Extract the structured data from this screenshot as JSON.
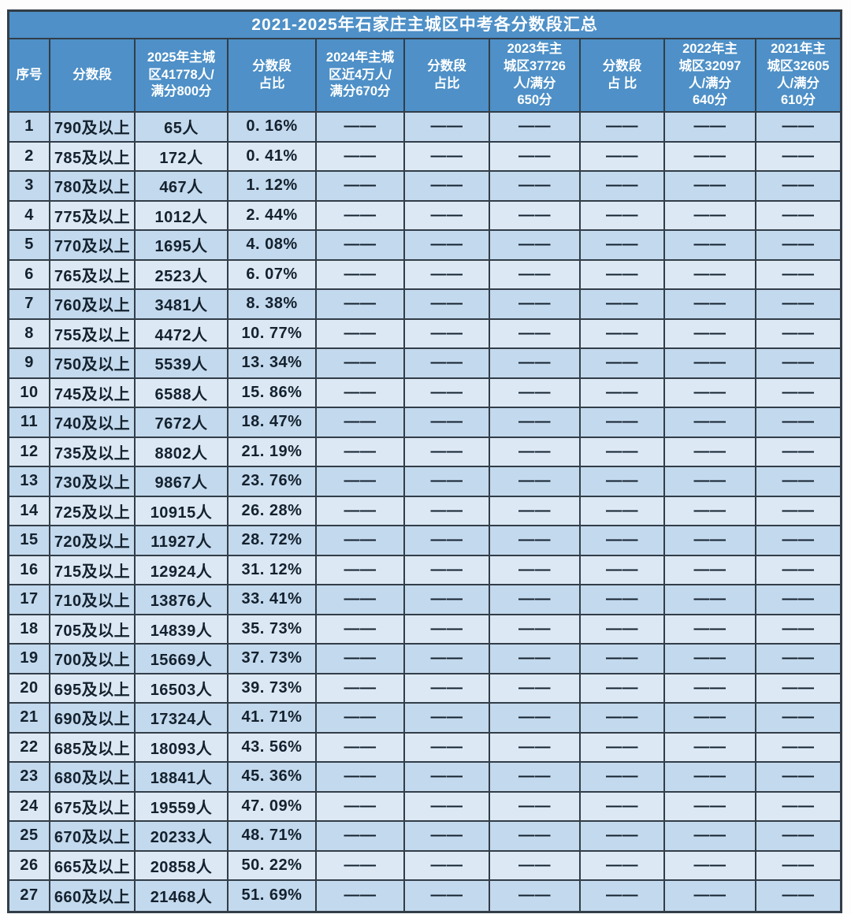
{
  "title": "2021-2025年石家庄主城区中考各分数段汇总",
  "colors": {
    "header_bg": "#4e90c7",
    "header_text": "#ffffff",
    "row_odd_bg": "#c3d9ed",
    "row_even_bg": "#dce9f5",
    "border": "#323d48",
    "cell_text": "#14212e",
    "page_bg": "#fdfdfd"
  },
  "placeholder_dash": "——",
  "chart_data": {
    "type": "table",
    "title": "2021-2025年石家庄主城区中考各分数段汇总",
    "columns": [
      "序号",
      "分数段",
      "2025年主城\n区41778人/\n满分800分",
      "分数段\n占比",
      "2024年主城\n区近4万人/\n满分670分",
      "分数段\n占比",
      "2023年主\n城区37726\n人/满分\n650分",
      "分数段\n占 比",
      "2022年主\n城区32097\n人/满分\n640分",
      "2021年主\n城区32605\n人/满分\n610分"
    ],
    "rows": [
      [
        "1",
        "790及以上",
        "65人",
        "0. 16%",
        "——",
        "——",
        "——",
        "——",
        "——",
        "——"
      ],
      [
        "2",
        "785及以上",
        "172人",
        "0. 41%",
        "——",
        "——",
        "——",
        "——",
        "——",
        "——"
      ],
      [
        "3",
        "780及以上",
        "467人",
        "1. 12%",
        "——",
        "——",
        "——",
        "——",
        "——",
        "——"
      ],
      [
        "4",
        "775及以上",
        "1012人",
        "2. 44%",
        "——",
        "——",
        "——",
        "——",
        "——",
        "——"
      ],
      [
        "5",
        "770及以上",
        "1695人",
        "4. 08%",
        "——",
        "——",
        "——",
        "——",
        "——",
        "——"
      ],
      [
        "6",
        "765及以上",
        "2523人",
        "6. 07%",
        "——",
        "——",
        "——",
        "——",
        "——",
        "——"
      ],
      [
        "7",
        "760及以上",
        "3481人",
        "8. 38%",
        "——",
        "——",
        "——",
        "——",
        "——",
        "——"
      ],
      [
        "8",
        "755及以上",
        "4472人",
        "10. 77%",
        "——",
        "——",
        "——",
        "——",
        "——",
        "——"
      ],
      [
        "9",
        "750及以上",
        "5539人",
        "13. 34%",
        "——",
        "——",
        "——",
        "——",
        "——",
        "——"
      ],
      [
        "10",
        "745及以上",
        "6588人",
        "15. 86%",
        "——",
        "——",
        "——",
        "——",
        "——",
        "——"
      ],
      [
        "11",
        "740及以上",
        "7672人",
        "18. 47%",
        "——",
        "——",
        "——",
        "——",
        "——",
        "——"
      ],
      [
        "12",
        "735及以上",
        "8802人",
        "21. 19%",
        "——",
        "——",
        "——",
        "——",
        "——",
        "——"
      ],
      [
        "13",
        "730及以上",
        "9867人",
        "23. 76%",
        "——",
        "——",
        "——",
        "——",
        "——",
        "——"
      ],
      [
        "14",
        "725及以上",
        "10915人",
        "26. 28%",
        "——",
        "——",
        "——",
        "——",
        "——",
        "——"
      ],
      [
        "15",
        "720及以上",
        "11927人",
        "28. 72%",
        "——",
        "——",
        "——",
        "——",
        "——",
        "——"
      ],
      [
        "16",
        "715及以上",
        "12924人",
        "31. 12%",
        "——",
        "——",
        "——",
        "——",
        "——",
        "——"
      ],
      [
        "17",
        "710及以上",
        "13876人",
        "33. 41%",
        "——",
        "——",
        "——",
        "——",
        "——",
        "——"
      ],
      [
        "18",
        "705及以上",
        "14839人",
        "35. 73%",
        "——",
        "——",
        "——",
        "——",
        "——",
        "——"
      ],
      [
        "19",
        "700及以上",
        "15669人",
        "37. 73%",
        "——",
        "——",
        "——",
        "——",
        "——",
        "——"
      ],
      [
        "20",
        "695及以上",
        "16503人",
        "39. 73%",
        "——",
        "——",
        "——",
        "——",
        "——",
        "——"
      ],
      [
        "21",
        "690及以上",
        "17324人",
        "41. 71%",
        "——",
        "——",
        "——",
        "——",
        "——",
        "——"
      ],
      [
        "22",
        "685及以上",
        "18093人",
        "43. 56%",
        "——",
        "——",
        "——",
        "——",
        "——",
        "——"
      ],
      [
        "23",
        "680及以上",
        "18841人",
        "45. 36%",
        "——",
        "——",
        "——",
        "——",
        "——",
        "——"
      ],
      [
        "24",
        "675及以上",
        "19559人",
        "47. 09%",
        "——",
        "——",
        "——",
        "——",
        "——",
        "——"
      ],
      [
        "25",
        "670及以上",
        "20233人",
        "48. 71%",
        "——",
        "——",
        "——",
        "——",
        "——",
        "——"
      ],
      [
        "26",
        "665及以上",
        "20858人",
        "50. 22%",
        "——",
        "——",
        "——",
        "——",
        "——",
        "——"
      ],
      [
        "27",
        "660及以上",
        "21468人",
        "51. 69%",
        "——",
        "——",
        "——",
        "——",
        "——",
        "——"
      ]
    ]
  }
}
